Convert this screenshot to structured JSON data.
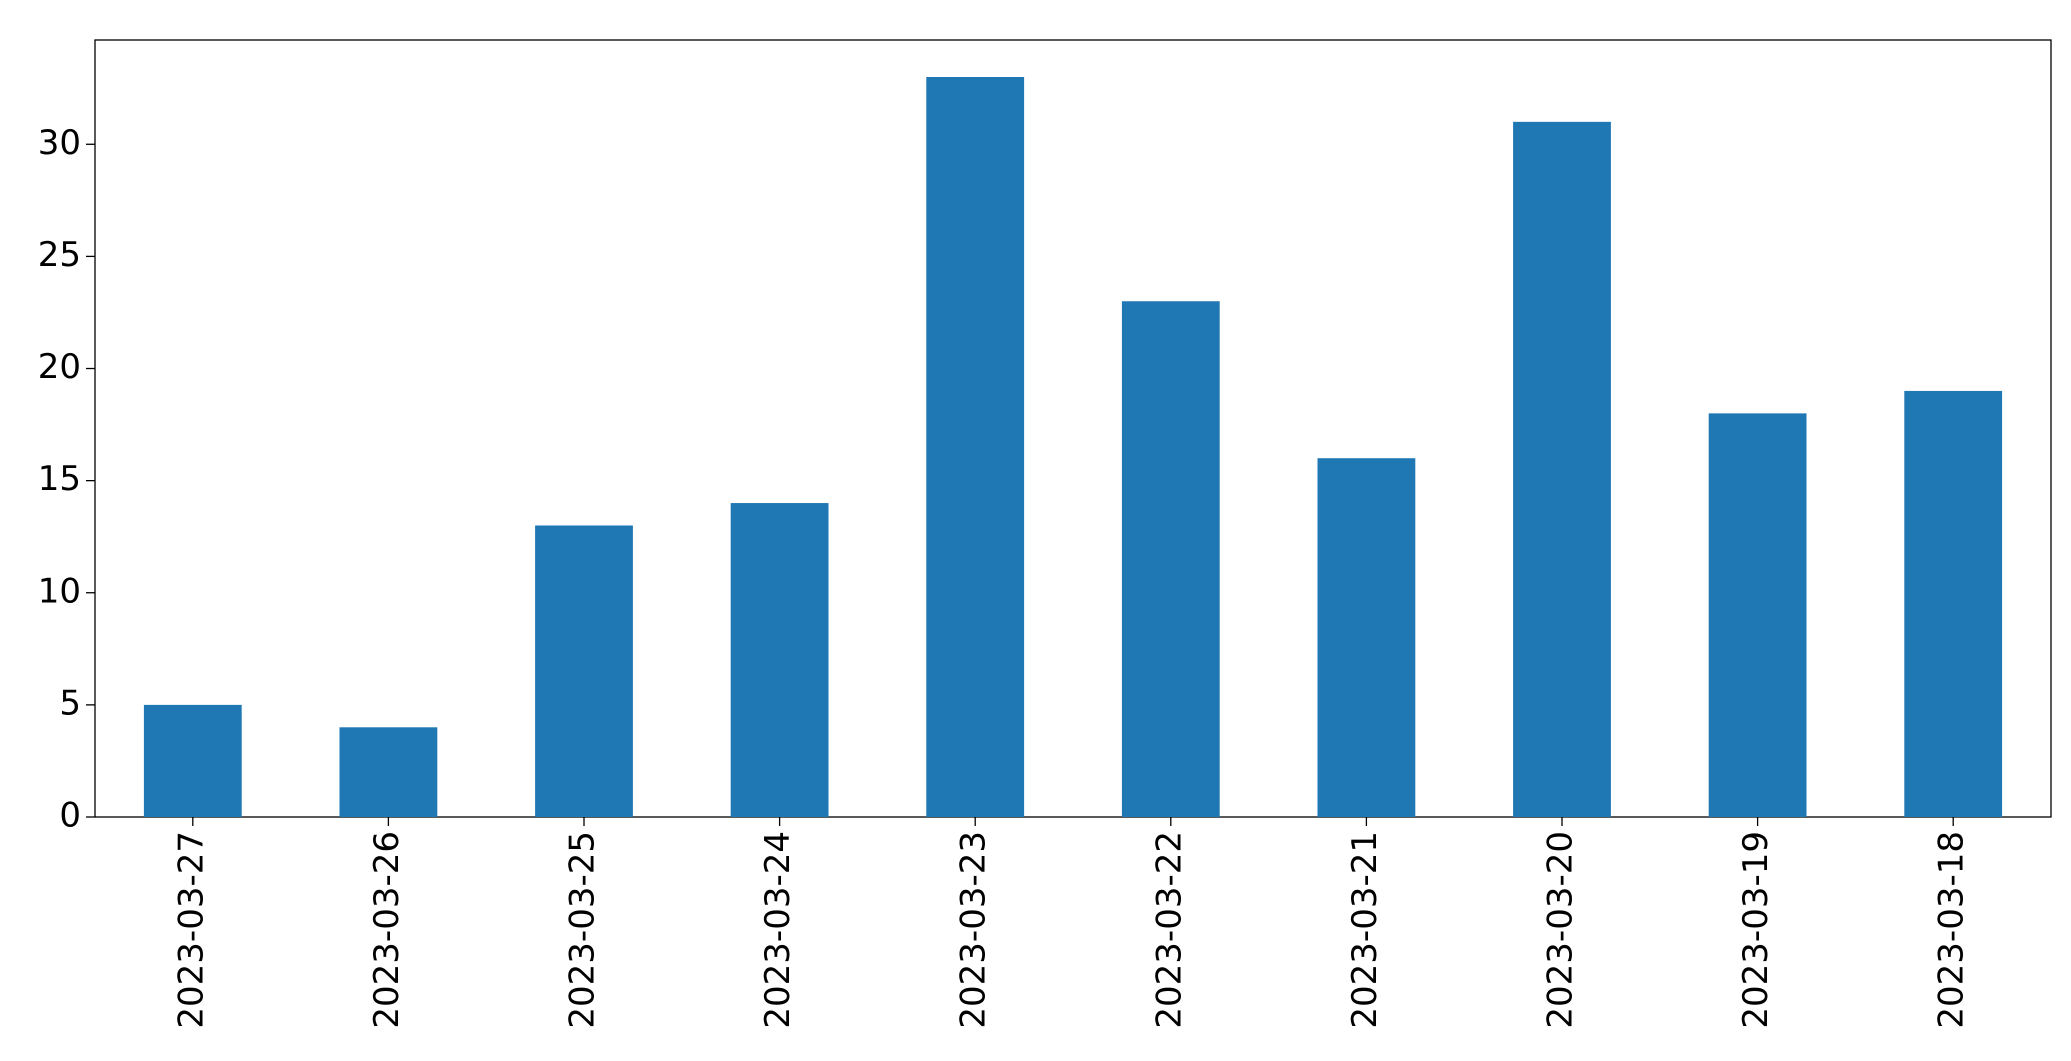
{
  "chart_data": {
    "type": "bar",
    "categories": [
      "2023-03-27",
      "2023-03-26",
      "2023-03-25",
      "2023-03-24",
      "2023-03-23",
      "2023-03-22",
      "2023-03-21",
      "2023-03-20",
      "2023-03-19",
      "2023-03-18"
    ],
    "values": [
      5,
      4,
      13,
      14,
      33,
      23,
      16,
      31,
      18,
      19
    ],
    "color": "#1f77b4",
    "ylim": [
      0,
      34.65
    ],
    "yticks": [
      0,
      5,
      10,
      15,
      20,
      25,
      30
    ],
    "grid": false
  }
}
